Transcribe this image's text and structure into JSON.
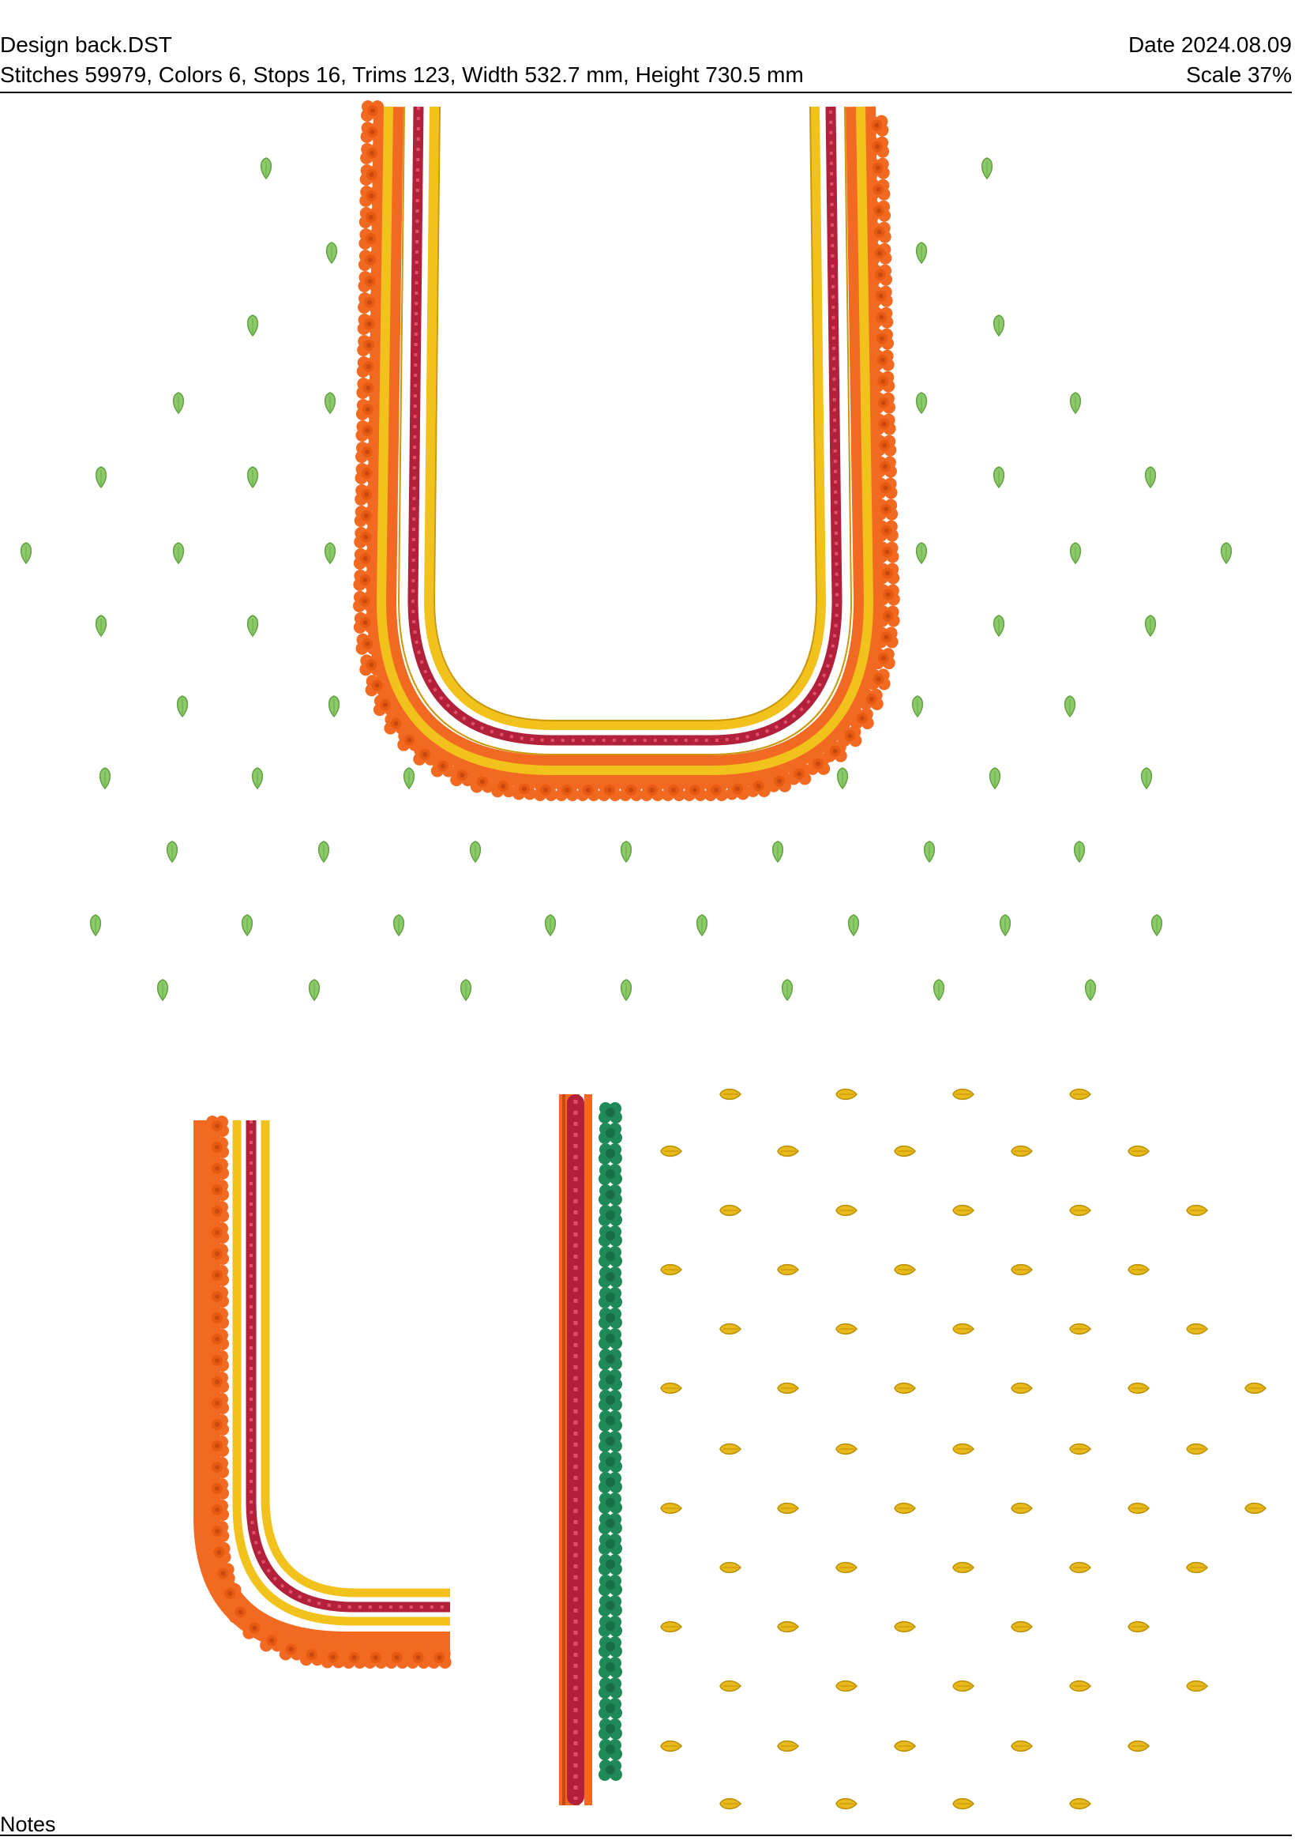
{
  "header": {
    "design_name": "Design back.DST",
    "date": "Date 2024.08.09",
    "stats": "Stitches 59979, Colors 6, Stops 16, Trims 123, Width 532.7 mm, Height 730.5 mm",
    "scale": "Scale 37%"
  },
  "footer": {
    "notes_label": "Notes"
  },
  "thread_colors": {
    "orange": "#f26a21",
    "orange_shadow": "#c9480e",
    "yellow": "#f2c21c",
    "yellow_shadow": "#c9980a",
    "maroon": "#b3203a",
    "maroon_bead": "#e0506a",
    "green_leaf": "#8cc96a",
    "green_flower": "#1f8a57",
    "gold_drop": "#e8b91a"
  },
  "motifs": {
    "leaf": "green-leaf-motif-icon",
    "drop": "gold-drop-motif-icon",
    "orange_flower": "orange-flower-border-icon",
    "green_flower": "green-flower-border-icon"
  }
}
